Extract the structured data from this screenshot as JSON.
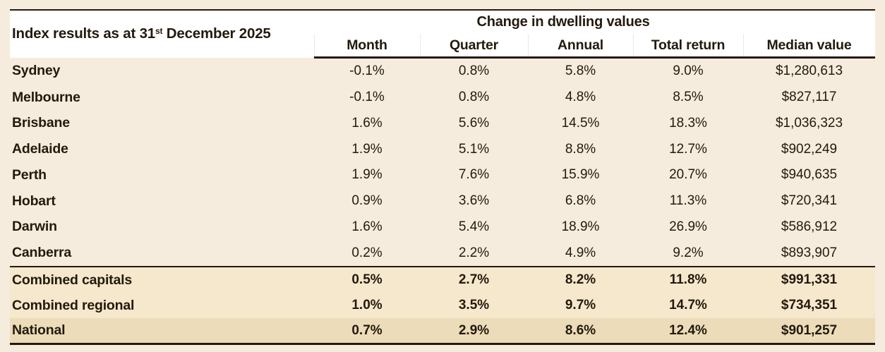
{
  "header": {
    "title_prefix": "Index results as at 31",
    "title_superscript": "st",
    "title_suffix": " December 2025",
    "group_header": "Change in dwelling values"
  },
  "colors": {
    "page_background": "#f5ecdd",
    "header_band": "#ffffff",
    "summary_row": "#f6e8cc",
    "total_row": "#ecdcb9",
    "rule_and_text": "#231a0e"
  },
  "chart_data": {
    "type": "table",
    "title": "Index results as at 31st December 2025",
    "group_header": "Change in dwelling values",
    "columns": [
      "Month",
      "Quarter",
      "Annual",
      "Total return",
      "Median value"
    ],
    "rows": [
      {
        "label": "Sydney",
        "type": "city",
        "values": [
          "-0.1%",
          "0.8%",
          "5.8%",
          "9.0%",
          "$1,280,613"
        ]
      },
      {
        "label": "Melbourne",
        "type": "city",
        "values": [
          "-0.1%",
          "0.8%",
          "4.8%",
          "8.5%",
          "$827,117"
        ]
      },
      {
        "label": "Brisbane",
        "type": "city",
        "values": [
          "1.6%",
          "5.6%",
          "14.5%",
          "18.3%",
          "$1,036,323"
        ]
      },
      {
        "label": "Adelaide",
        "type": "city",
        "values": [
          "1.9%",
          "5.1%",
          "8.8%",
          "12.7%",
          "$902,249"
        ]
      },
      {
        "label": "Perth",
        "type": "city",
        "values": [
          "1.9%",
          "7.6%",
          "15.9%",
          "20.7%",
          "$940,635"
        ]
      },
      {
        "label": "Hobart",
        "type": "city",
        "values": [
          "0.9%",
          "3.6%",
          "6.8%",
          "11.3%",
          "$720,341"
        ]
      },
      {
        "label": "Darwin",
        "type": "city",
        "values": [
          "1.6%",
          "5.4%",
          "18.9%",
          "26.9%",
          "$586,912"
        ]
      },
      {
        "label": "Canberra",
        "type": "city",
        "values": [
          "0.2%",
          "2.2%",
          "4.9%",
          "9.2%",
          "$893,907"
        ]
      },
      {
        "label": "Combined capitals",
        "type": "summary",
        "values": [
          "0.5%",
          "2.7%",
          "8.2%",
          "11.8%",
          "$991,331"
        ]
      },
      {
        "label": "Combined regional",
        "type": "summary",
        "values": [
          "1.0%",
          "3.5%",
          "9.7%",
          "14.7%",
          "$734,351"
        ]
      },
      {
        "label": "National",
        "type": "total",
        "values": [
          "0.7%",
          "2.9%",
          "8.6%",
          "12.4%",
          "$901,257"
        ]
      }
    ]
  }
}
